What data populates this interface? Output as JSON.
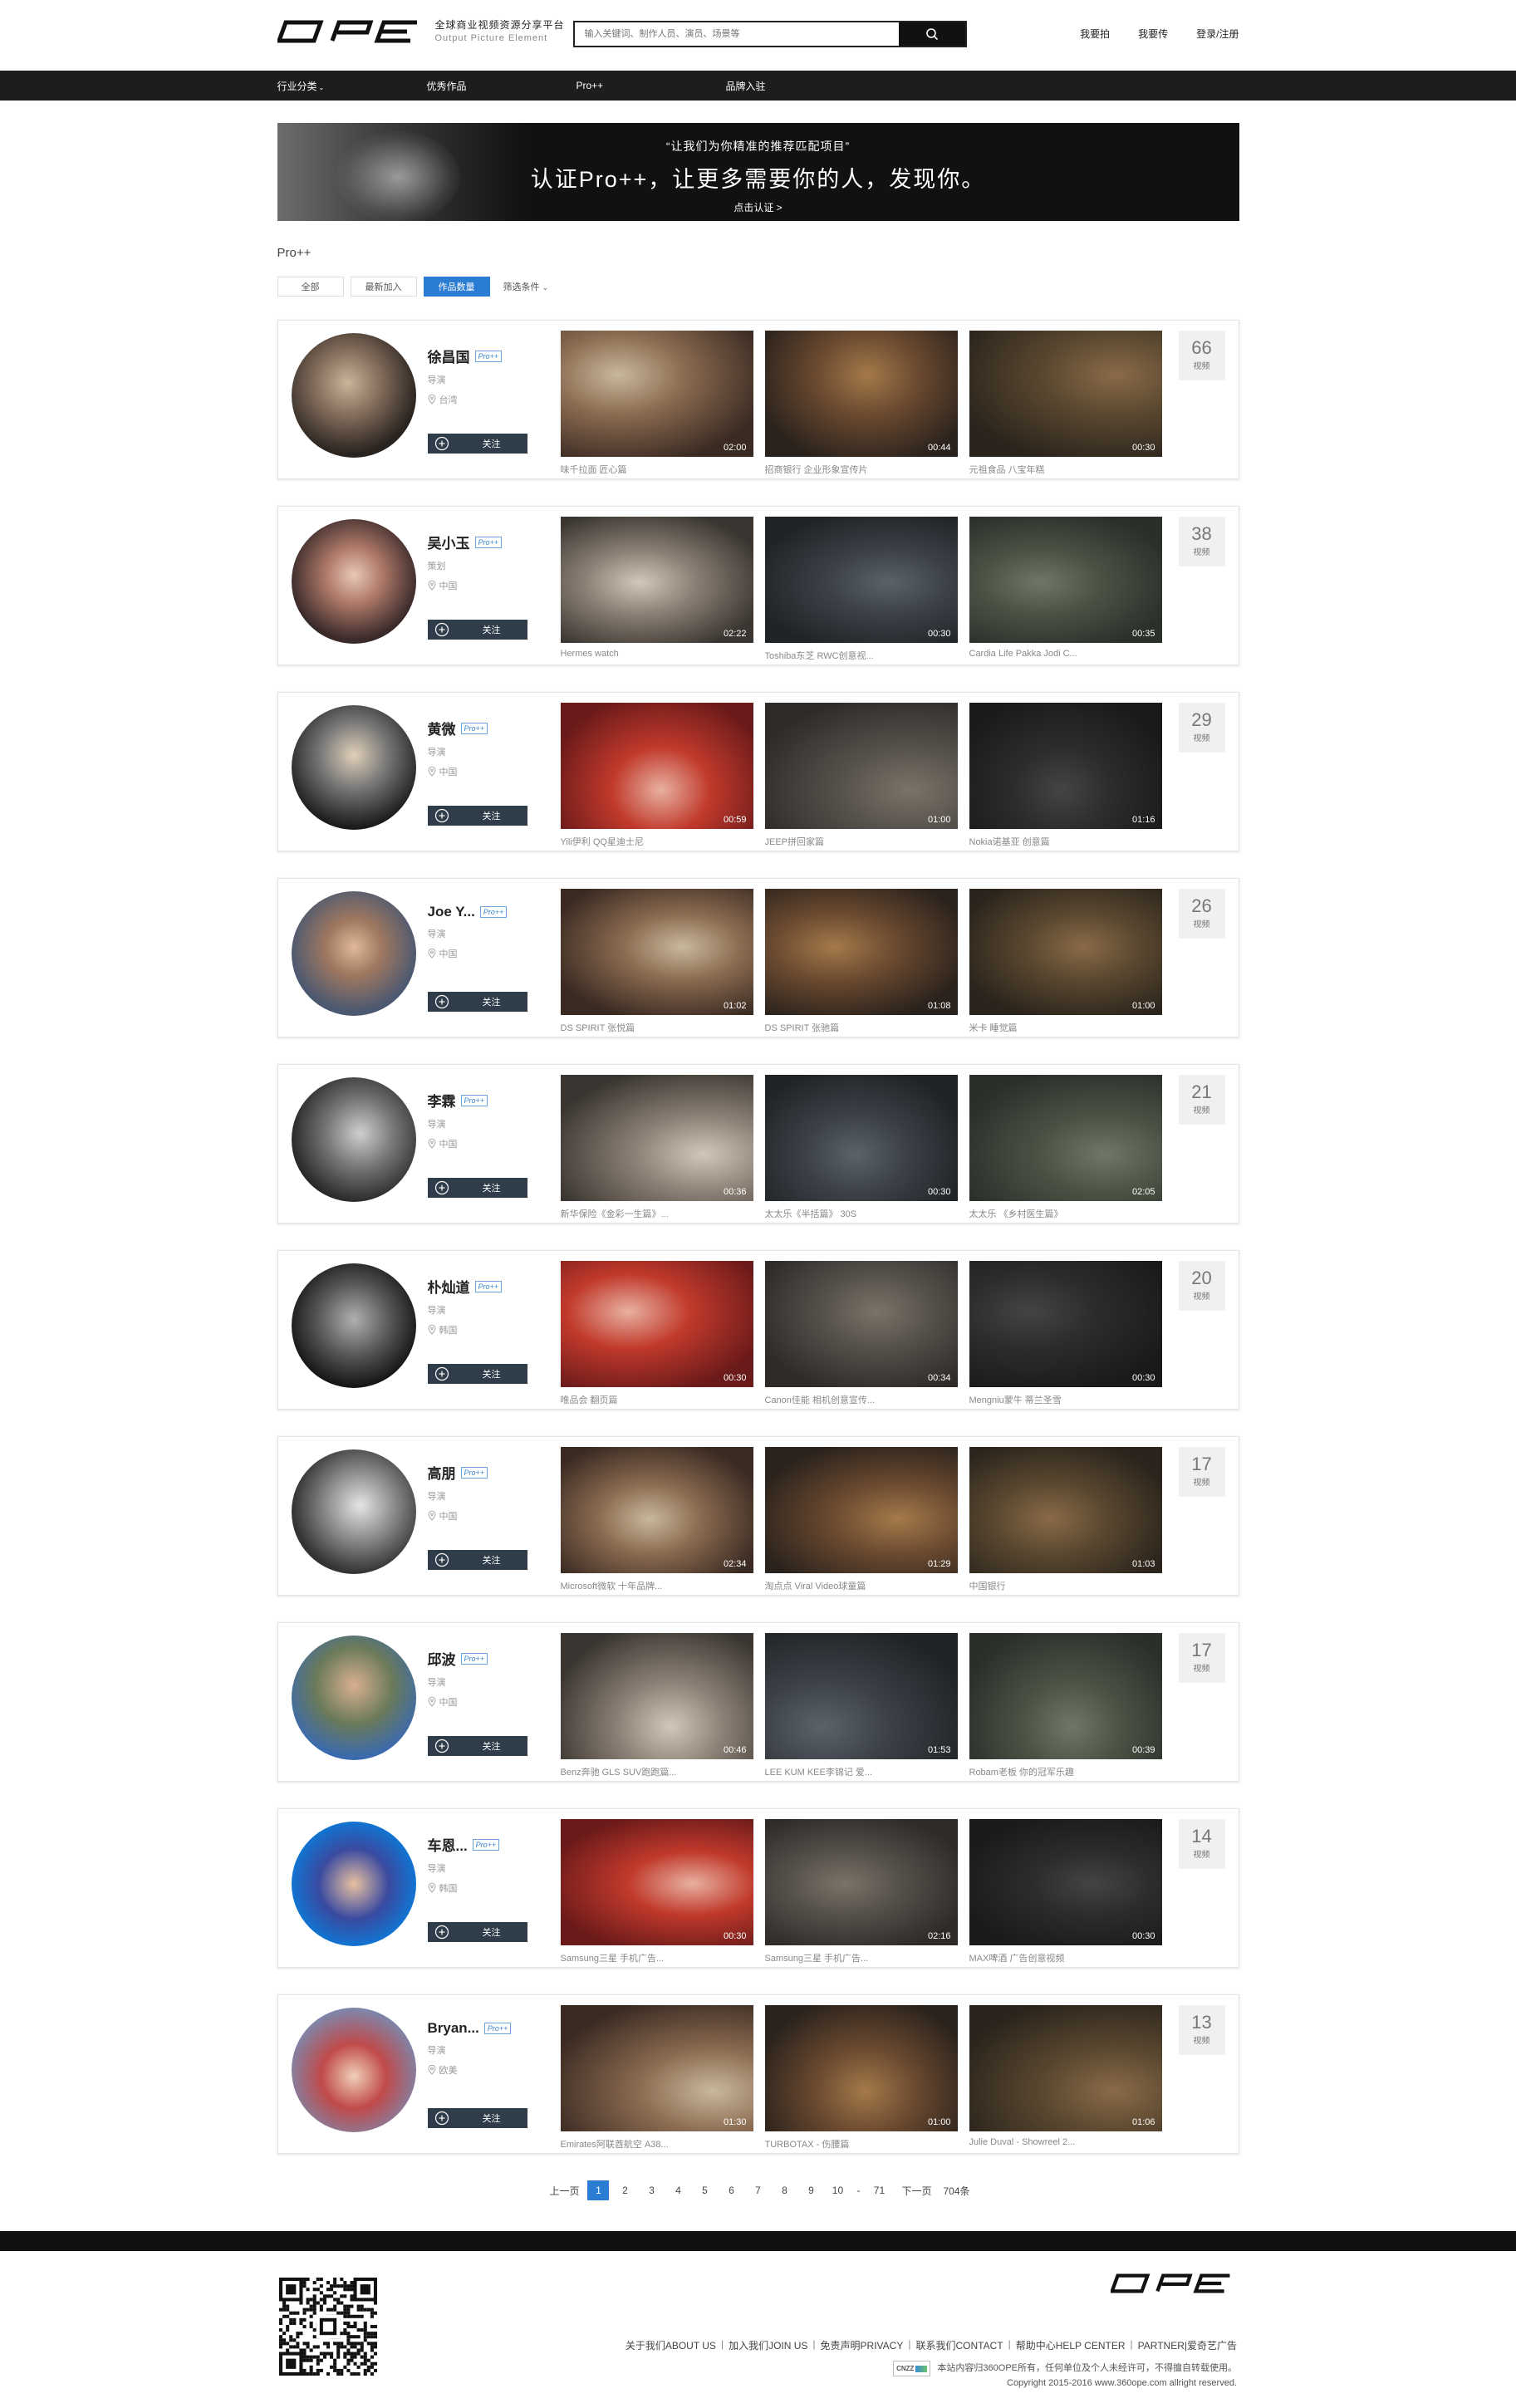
{
  "header": {
    "tagline_cn": "全球商业视频资源分享平台",
    "tagline_en": "Output Picture Element",
    "search_placeholder": "输入关键词、制作人员、演员、场景等",
    "links": [
      "我要拍",
      "我要传",
      "登录/注册"
    ]
  },
  "nav": [
    "行业分类",
    "优秀作品",
    "Pro++",
    "品牌入驻"
  ],
  "banner": {
    "quote": "“让我们为你精准的推荐匹配项目”",
    "headline": "认证Pro++，让更多需要你的人，发现你。",
    "cta": "点击认证 >"
  },
  "section_title": "Pro++",
  "filters": [
    "全部",
    "最新加入",
    "作品数量"
  ],
  "filter_active": 2,
  "filter_select": "筛选条件",
  "pro_badge": "Pro++",
  "follow_label": "关注",
  "count_unit": "视频",
  "creators": [
    {
      "name": "徐昌国",
      "role": "导演",
      "location": "台湾",
      "count": "66",
      "works": [
        {
          "title": "味千拉面 匠心篇",
          "duration": "02:00"
        },
        {
          "title": "招商银行 企业形象宣传片",
          "duration": "00:44"
        },
        {
          "title": "元祖食品 八宝年糕",
          "duration": "00:30"
        }
      ]
    },
    {
      "name": "吴小玉",
      "role": "策划",
      "location": "中国",
      "count": "38",
      "works": [
        {
          "title": "Hermes watch",
          "duration": "02:22"
        },
        {
          "title": "Toshiba东芝 RWC创意视...",
          "duration": "00:30"
        },
        {
          "title": "Cardia Life Pakka Jodi C...",
          "duration": "00:35"
        }
      ]
    },
    {
      "name": "黄微",
      "role": "导演",
      "location": "中国",
      "count": "29",
      "works": [
        {
          "title": "Yili伊利 QQ星迪士尼",
          "duration": "00:59"
        },
        {
          "title": "JEEP拼回家篇",
          "duration": "01:00"
        },
        {
          "title": "Nokia诺基亚 创意篇",
          "duration": "01:16"
        }
      ]
    },
    {
      "name": "Joe Y...",
      "role": "导演",
      "location": "中国",
      "count": "26",
      "works": [
        {
          "title": "DS SPIRIT 张悦篇",
          "duration": "01:02"
        },
        {
          "title": "DS SPIRIT 张驰篇",
          "duration": "01:08"
        },
        {
          "title": "米卡 睡觉篇",
          "duration": "01:00"
        }
      ]
    },
    {
      "name": "李霖",
      "role": "导演",
      "location": "中国",
      "count": "21",
      "works": [
        {
          "title": "新华保险《金彩一生篇》...",
          "duration": "00:36"
        },
        {
          "title": "太太乐《半括篇》 30S",
          "duration": "00:30"
        },
        {
          "title": "太太乐 《乡村医生篇》",
          "duration": "02:05"
        }
      ]
    },
    {
      "name": "朴灿道",
      "role": "导演",
      "location": "韩国",
      "count": "20",
      "works": [
        {
          "title": "唯品会 翻页篇",
          "duration": "00:30"
        },
        {
          "title": "Canon佳能 相机创意宣传...",
          "duration": "00:34"
        },
        {
          "title": "Mengniu蒙牛 蒂兰圣雪",
          "duration": "00:30"
        }
      ]
    },
    {
      "name": "高朋",
      "role": "导演",
      "location": "中国",
      "count": "17",
      "works": [
        {
          "title": "Microsoft微软 十年品牌...",
          "duration": "02:34"
        },
        {
          "title": "淘点点 Viral Video球童篇",
          "duration": "01:29"
        },
        {
          "title": "中国银行",
          "duration": "01:03"
        }
      ]
    },
    {
      "name": "邱波",
      "role": "导演",
      "location": "中国",
      "count": "17",
      "works": [
        {
          "title": "Benz奔驰 GLS SUV跑跑篇...",
          "duration": "00:46"
        },
        {
          "title": "LEE KUM KEE李锦记 爱...",
          "duration": "01:53"
        },
        {
          "title": "Robam老板 你的冠军乐趣",
          "duration": "00:39"
        }
      ]
    },
    {
      "name": "车恩...",
      "role": "导演",
      "location": "韩国",
      "count": "14",
      "works": [
        {
          "title": "Samsung三星 手机广告...",
          "duration": "00:30"
        },
        {
          "title": "Samsung三星 手机广告...",
          "duration": "02:16"
        },
        {
          "title": "MAX啤酒 广告创意视频",
          "duration": "00:30"
        }
      ]
    },
    {
      "name": "Bryan...",
      "role": "导演",
      "location": "欧美",
      "count": "13",
      "works": [
        {
          "title": "Emirates阿联酋航空 A38...",
          "duration": "01:30"
        },
        {
          "title": "TURBOTAX - 伤腰篇",
          "duration": "01:00"
        },
        {
          "title": "Julie Duval - Showreel 2...",
          "duration": "01:06"
        }
      ]
    }
  ],
  "pagination": {
    "prev": "上一页",
    "pages": [
      "1",
      "2",
      "3",
      "4",
      "5",
      "6",
      "7",
      "8",
      "9",
      "10"
    ],
    "ellipsis": "-",
    "last": "71",
    "next": "下一页",
    "total": "704条",
    "active": 0
  },
  "footer": {
    "links": [
      "关于我们ABOUT US",
      "加入我们JOIN US",
      "免责声明PRIVACY",
      "联系我们CONTACT",
      "帮助中心HELP CENTER",
      "PARTNER|爱奇艺广告"
    ],
    "separator": "|",
    "badge": "CNZZ",
    "rights": "本站内容归360OPE所有，任何单位及个人未经许可，不得擅自转载使用。",
    "copyright": "Copyright 2015-2016 www.360ope.com allright reserved."
  },
  "colors": {
    "accent": "#2b7cd3",
    "nav_bg": "#1d1d1d",
    "follow_bg": "#2f3d4a"
  }
}
